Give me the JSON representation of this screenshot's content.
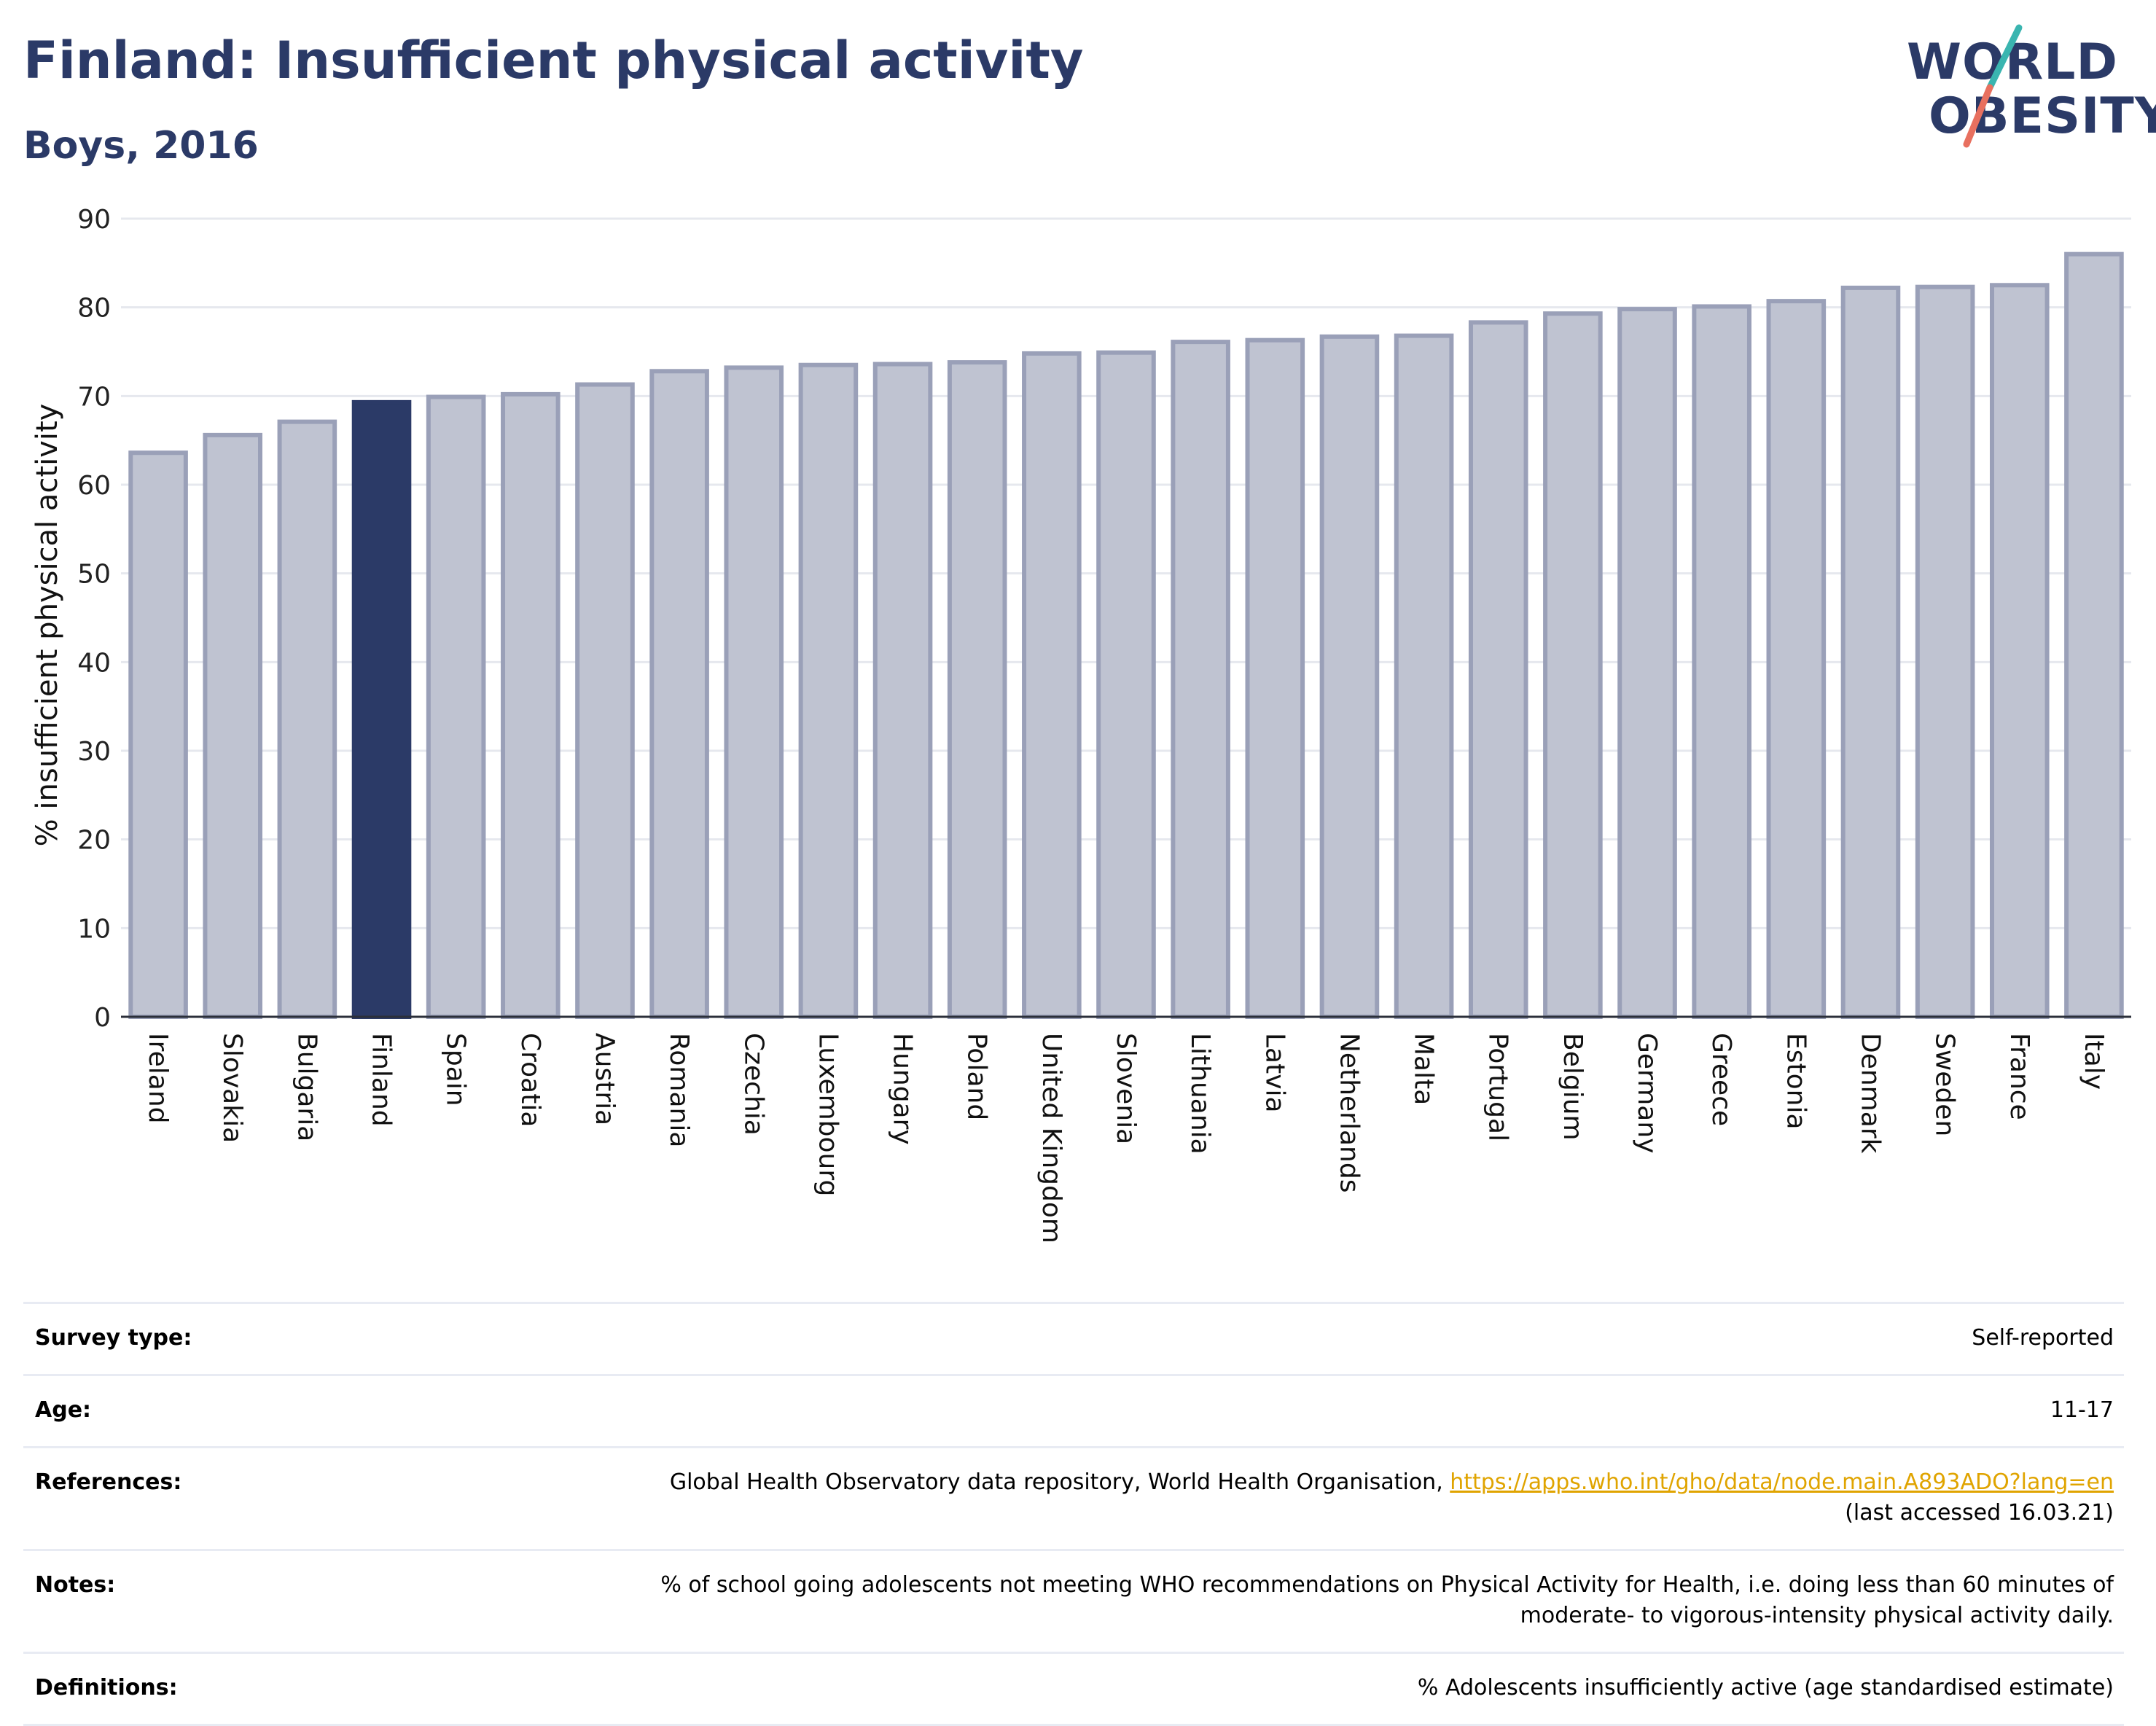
{
  "header": {
    "title": "Finland: Insufficient physical activity",
    "subtitle": "Boys, 2016"
  },
  "logo": {
    "line1": "WORLD",
    "line2": "OBESITY",
    "accent_teal": "#3ab5b0",
    "accent_coral": "#e8705f"
  },
  "colors": {
    "brand": "#2b3a67",
    "bar_default": "#bfc3d1",
    "bar_highlight": "#2b3a67",
    "bar_outline": "#9aa0b8"
  },
  "chart_data": {
    "type": "bar",
    "title": "Finland: Insufficient physical activity",
    "subtitle": "Boys, 2016",
    "ylabel": "% insufficient physical activity",
    "xlabel": "",
    "ylim": [
      0,
      90
    ],
    "yticks": [
      0,
      10,
      20,
      30,
      40,
      50,
      60,
      70,
      80,
      90
    ],
    "grid": true,
    "highlight": "Finland",
    "categories": [
      "Ireland",
      "Slovakia",
      "Bulgaria",
      "Finland",
      "Spain",
      "Croatia",
      "Austria",
      "Romania",
      "Czechia",
      "Luxembourg",
      "Hungary",
      "Poland",
      "United Kingdom",
      "Slovenia",
      "Lithuania",
      "Latvia",
      "Netherlands",
      "Malta",
      "Portugal",
      "Belgium",
      "Germany",
      "Greece",
      "Estonia",
      "Denmark",
      "Sweden",
      "France",
      "Italy"
    ],
    "values": [
      63.6,
      65.6,
      67.1,
      69.3,
      69.9,
      70.2,
      71.3,
      72.8,
      73.2,
      73.5,
      73.6,
      73.8,
      74.8,
      74.9,
      76.1,
      76.3,
      76.7,
      76.8,
      78.3,
      79.3,
      79.8,
      80.1,
      80.7,
      82.2,
      82.3,
      82.5,
      86.0
    ]
  },
  "meta": [
    {
      "key": "Survey type:",
      "value": "Self-reported"
    },
    {
      "key": "Age:",
      "value": "11-17"
    },
    {
      "key": "References:",
      "value": "Global Health Observatory data repository, World Health Organisation, ",
      "link": "https://apps.who.int/gho/data/node.main.A893ADO?lang=en",
      "value2": "(last accessed 16.03.21)"
    },
    {
      "key": "Notes:",
      "value": "% of school going adolescents not meeting WHO recommendations on Physical Activity for Health, i.e. doing less than 60 minutes of moderate- to vigorous-intensity physical activity daily."
    },
    {
      "key": "Definitions:",
      "value": "% Adolescents insufficiently active (age standardised estimate)"
    }
  ]
}
